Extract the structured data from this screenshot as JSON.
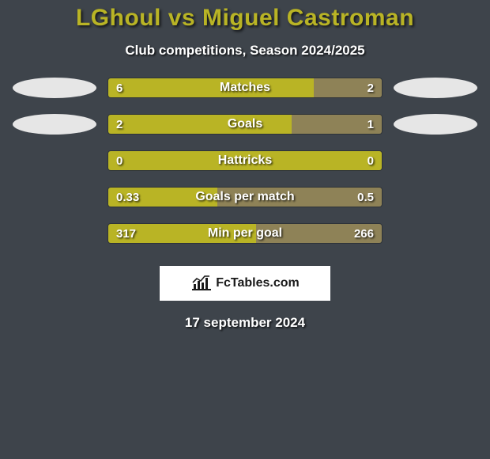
{
  "background_color": "#3e444b",
  "title": {
    "text": "LGhoul vs Miguel Castroman",
    "color": "#b9b425",
    "fontsize": 30
  },
  "subtitle": {
    "text": "Club competitions, Season 2024/2025",
    "fontsize": 17
  },
  "ellipse": {
    "left_color": "#e6e6e6",
    "right_color": "#e6e6e6"
  },
  "bar_style": {
    "left_color": "#b9b425",
    "right_color": "#8e8257",
    "value_fontsize": 15,
    "label_fontsize": 16
  },
  "rows": [
    {
      "label": "Matches",
      "left_value": "6",
      "right_value": "2",
      "left_pct": 75,
      "right_pct": 25,
      "show_ellipses": true
    },
    {
      "label": "Goals",
      "left_value": "2",
      "right_value": "1",
      "left_pct": 67,
      "right_pct": 33,
      "show_ellipses": true
    },
    {
      "label": "Hattricks",
      "left_value": "0",
      "right_value": "0",
      "left_pct": 100,
      "right_pct": 0,
      "show_ellipses": false
    },
    {
      "label": "Goals per match",
      "left_value": "0.33",
      "right_value": "0.5",
      "left_pct": 40,
      "right_pct": 60,
      "show_ellipses": false
    },
    {
      "label": "Min per goal",
      "left_value": "317",
      "right_value": "266",
      "left_pct": 54,
      "right_pct": 46,
      "show_ellipses": false
    }
  ],
  "brand": {
    "text": "FcTables.com",
    "icon_color": "#1a1a1a",
    "fontsize": 16
  },
  "date": {
    "text": "17 september 2024",
    "fontsize": 17
  }
}
